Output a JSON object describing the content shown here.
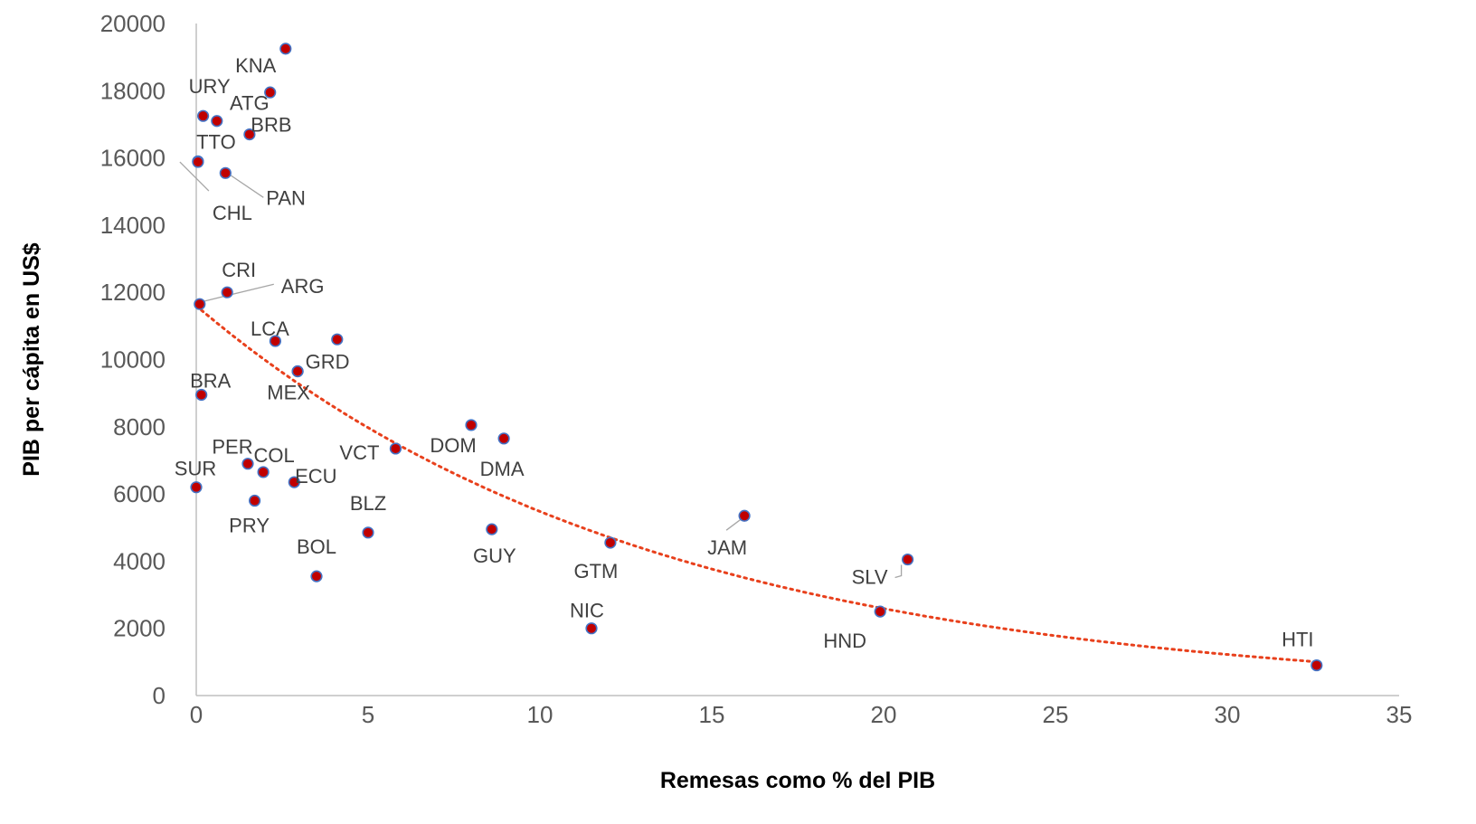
{
  "chart_data": {
    "type": "scatter",
    "title": "",
    "xlabel": "Remesas como % del PIB",
    "ylabel": "PIB per cápita en US$",
    "xlim": [
      0,
      35
    ],
    "ylim": [
      0,
      20000
    ],
    "x_ticks": [
      0,
      5,
      10,
      15,
      20,
      25,
      30,
      35
    ],
    "y_ticks": [
      0,
      2000,
      4000,
      6000,
      8000,
      10000,
      12000,
      14000,
      16000,
      18000,
      20000
    ],
    "grid": false,
    "legend": "none",
    "marker_color": "#c00000",
    "marker_edge_color": "#4472c4",
    "trendline": {
      "type": "exponential",
      "a": 11600,
      "b": -0.075,
      "color": "#e8401c",
      "style": "dotted"
    },
    "points": [
      {
        "label": "",
        "x": 2.6,
        "y": 19250
      },
      {
        "label": "KNA",
        "x": 2.15,
        "y": 17950
      },
      {
        "label": "URY",
        "x": 0.2,
        "y": 17250
      },
      {
        "label": "ATG",
        "x": 0.6,
        "y": 17100
      },
      {
        "label": "BRB",
        "x": 1.55,
        "y": 16700
      },
      {
        "label": "TTO",
        "x": 0.05,
        "y": 15900
      },
      {
        "label": "PAN",
        "x": 0.85,
        "y": 15550
      },
      {
        "label": "CHL",
        "x": 0.05,
        "y": 15880
      },
      {
        "label": "CRI",
        "x": 0.9,
        "y": 12000
      },
      {
        "label": "ARG",
        "x": 0.1,
        "y": 11650
      },
      {
        "label": "LCA",
        "x": 2.3,
        "y": 10550
      },
      {
        "label": "",
        "x": 4.1,
        "y": 10600
      },
      {
        "label": "GRD",
        "x": 2.95,
        "y": 9650
      },
      {
        "label": "MEX",
        "x": 2.95,
        "y": 9650
      },
      {
        "label": "BRA",
        "x": 0.15,
        "y": 8950
      },
      {
        "label": "DOM",
        "x": 8.0,
        "y": 8050
      },
      {
        "label": "DMA",
        "x": 8.95,
        "y": 7650
      },
      {
        "label": "VCT",
        "x": 5.8,
        "y": 7350
      },
      {
        "label": "PER",
        "x": 1.5,
        "y": 6900
      },
      {
        "label": "COL",
        "x": 1.95,
        "y": 6650
      },
      {
        "label": "ECU",
        "x": 2.85,
        "y": 6350
      },
      {
        "label": "SUR",
        "x": 0.0,
        "y": 6200
      },
      {
        "label": "PRY",
        "x": 1.7,
        "y": 5800
      },
      {
        "label": "JAM",
        "x": 15.95,
        "y": 5350
      },
      {
        "label": "GUY",
        "x": 8.6,
        "y": 4950
      },
      {
        "label": "BLZ",
        "x": 5.0,
        "y": 4850
      },
      {
        "label": "GTM",
        "x": 12.05,
        "y": 4550
      },
      {
        "label": "SLV",
        "x": 20.7,
        "y": 4050
      },
      {
        "label": "BOL",
        "x": 3.5,
        "y": 3550
      },
      {
        "label": "HND",
        "x": 19.9,
        "y": 2500
      },
      {
        "label": "NIC",
        "x": 11.5,
        "y": 2000
      },
      {
        "label": "HTI",
        "x": 32.6,
        "y": 900
      }
    ]
  }
}
